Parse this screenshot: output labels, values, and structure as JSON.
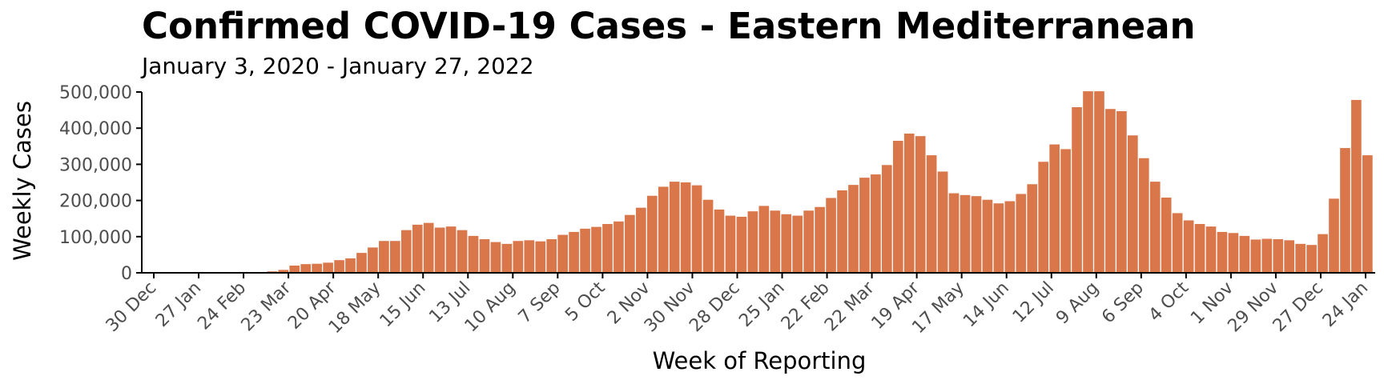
{
  "chart_data": {
    "type": "bar",
    "title": "Confirmed COVID-19 Cases - Eastern Mediterranean",
    "subtitle": "January 3, 2020 - January 27, 2022",
    "xlabel": "Week of Reporting",
    "ylabel": "Weekly Cases",
    "ylim": [
      0,
      500000
    ],
    "yticks": [
      0,
      100000,
      200000,
      300000,
      400000,
      500000
    ],
    "ytick_labels": [
      "0",
      "100,000",
      "200,000",
      "300,000",
      "400,000",
      "500,000"
    ],
    "xtick_labels": [
      "30 Dec",
      "27 Jan",
      "24 Feb",
      "23 Mar",
      "20 Apr",
      "18 May",
      "15 Jun",
      "13 Jul",
      "10 Aug",
      "7 Sep",
      "5 Oct",
      "2 Nov",
      "30 Nov",
      "28 Dec",
      "25 Jan",
      "22 Feb",
      "22 Mar",
      "19 Apr",
      "17 May",
      "14 Jun",
      "12 Jul",
      "9 Aug",
      "6 Sep",
      "4 Oct",
      "1 Nov",
      "29 Nov",
      "27 Dec",
      "24 Jan"
    ],
    "bar_color": "#d9764a",
    "values": [
      0,
      0,
      0,
      0,
      0,
      0,
      0,
      0,
      0,
      500,
      2000,
      4000,
      8000,
      20000,
      24000,
      25000,
      28000,
      35000,
      40000,
      55000,
      70000,
      88000,
      88000,
      118000,
      133000,
      138000,
      125000,
      128000,
      118000,
      102000,
      93000,
      85000,
      80000,
      88000,
      90000,
      87000,
      93000,
      105000,
      113000,
      122000,
      127000,
      135000,
      142000,
      160000,
      180000,
      213000,
      238000,
      252000,
      250000,
      242000,
      202000,
      175000,
      158000,
      155000,
      170000,
      185000,
      172000,
      162000,
      158000,
      172000,
      182000,
      207000,
      228000,
      243000,
      263000,
      272000,
      298000,
      365000,
      385000,
      378000,
      325000,
      280000,
      220000,
      215000,
      212000,
      202000,
      192000,
      198000,
      218000,
      245000,
      307000,
      355000,
      342000,
      458000,
      502000,
      502000,
      453000,
      447000,
      380000,
      317000,
      252000,
      208000,
      165000,
      145000,
      135000,
      128000,
      113000,
      110000,
      102000,
      92000,
      94000,
      93000,
      90000,
      80000,
      77000,
      107000,
      205000,
      345000,
      478000,
      325000
    ]
  }
}
